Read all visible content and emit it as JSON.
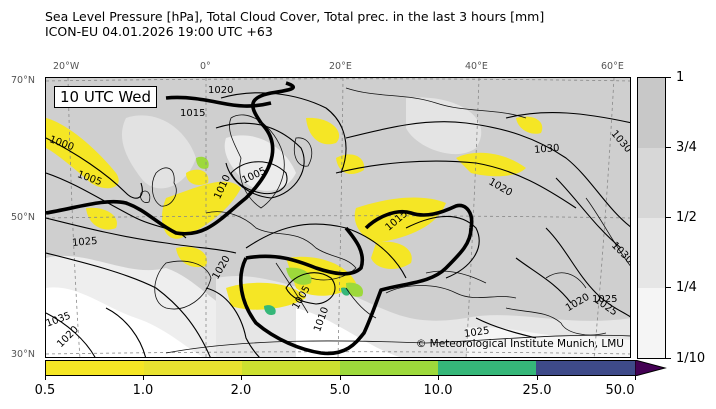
{
  "title": {
    "line1": "Sea Level Pressure [hPa], Total Cloud Cover, Total prec. in the last 3 hours [mm]",
    "line2": "ICON-EU 04.01.2026 19:00 UTC +63"
  },
  "time_label": "10 UTC Wed",
  "copyright": "© Meteorological Institute Munich, LMU",
  "axes": {
    "top_labels": [
      "20°W",
      "0°",
      "20°E",
      "40°E",
      "60°E"
    ],
    "left_labels": [
      "70°N",
      "50°N",
      "30°N"
    ]
  },
  "isobar_labels": [
    "1020",
    "1015",
    "1000",
    "1005",
    "1005",
    "1010",
    "1025",
    "1030",
    "1020",
    "1015",
    "1020",
    "1025",
    "1030",
    "1035",
    "1010",
    "1005",
    "1020",
    "1025",
    "1030",
    "1025",
    "1020"
  ],
  "cloud_colorbar": {
    "labels": [
      "1",
      "3/4",
      "1/2",
      "1/4",
      "1/10"
    ],
    "colors": [
      "#c8c8c8",
      "#d7d7d7",
      "#e6e6e6",
      "#f5f5f5"
    ]
  },
  "precip_colorbar": {
    "labels": [
      "0.5",
      "1.0",
      "2.0",
      "5.0",
      "10.0",
      "25.0",
      "50.0"
    ],
    "colors": [
      "#f5e625",
      "#e8e230",
      "#cce030",
      "#9dd93b",
      "#35b779",
      "#3e4a89",
      "#440154"
    ]
  }
}
